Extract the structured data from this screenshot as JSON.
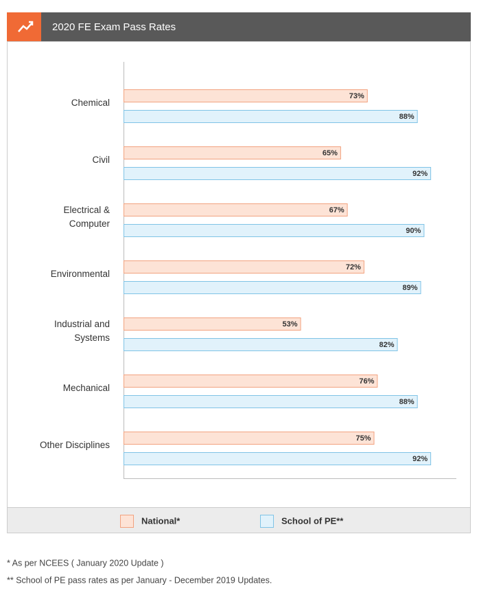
{
  "chart_data": {
    "type": "bar",
    "orientation": "horizontal",
    "title": "2020 FE Exam Pass Rates",
    "categories": [
      "Chemical",
      "Civil",
      "Electrical & Computer",
      "Environmental",
      "Industrial and Systems",
      "Mechanical",
      "Other Disciplines"
    ],
    "series": [
      {
        "name": "National*",
        "color": "#fde3d6",
        "edge": "#f2a27f",
        "values": [
          73,
          65,
          67,
          72,
          53,
          76,
          75
        ],
        "value_labels": [
          "73%",
          "65%",
          "67%",
          "72%",
          "53%",
          "76%",
          "75%"
        ]
      },
      {
        "name": "School of PE**",
        "color": "#e1f2fb",
        "edge": "#7fc3e6",
        "values": [
          88,
          92,
          90,
          89,
          82,
          88,
          92
        ],
        "value_labels": [
          "88%",
          "92%",
          "90%",
          "89%",
          "82%",
          "88%",
          "92%"
        ]
      }
    ],
    "xlim": [
      0,
      100
    ]
  },
  "footnotes": [
    "* As per NCEES ( January 2020 Update )",
    "** School of PE pass rates as per January - December 2019 Updates."
  ]
}
